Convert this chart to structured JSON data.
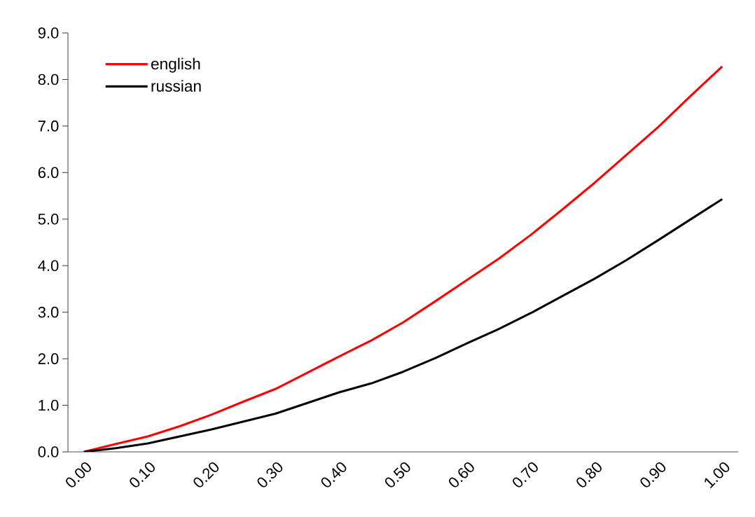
{
  "chart_data": {
    "type": "line",
    "categories": [
      "0.00",
      null,
      "0.10",
      null,
      "0.20",
      null,
      "0.30",
      null,
      "0.40",
      null,
      "0.50",
      null,
      "0.60",
      null,
      "0.70",
      null,
      "0.80",
      null,
      "0.90",
      null,
      "1.00"
    ],
    "series": [
      {
        "name": "english",
        "color": "#ff0000",
        "values": [
          0.0,
          0.17,
          0.33,
          0.55,
          0.8,
          1.08,
          1.35,
          1.7,
          2.05,
          2.39,
          2.78,
          3.23,
          3.69,
          4.15,
          4.66,
          5.21,
          5.78,
          6.38,
          6.98,
          7.64,
          8.28
        ]
      },
      {
        "name": "russian",
        "color": "#000000",
        "values": [
          0.0,
          0.08,
          0.18,
          0.33,
          0.48,
          0.65,
          0.82,
          1.05,
          1.28,
          1.47,
          1.72,
          2.01,
          2.33,
          2.64,
          2.98,
          3.35,
          3.72,
          4.12,
          4.55,
          4.99,
          5.43
        ]
      }
    ],
    "ylim": [
      0,
      9
    ],
    "yticks": [
      {
        "value": 0,
        "label": "0.0"
      },
      {
        "value": 1,
        "label": "1.0"
      },
      {
        "value": 2,
        "label": "2.0"
      },
      {
        "value": 3,
        "label": "3.0"
      },
      {
        "value": 4,
        "label": "4.0"
      },
      {
        "value": 5,
        "label": "5.0"
      },
      {
        "value": 6,
        "label": "6.0"
      },
      {
        "value": 7,
        "label": "7.0"
      },
      {
        "value": 8,
        "label": "8.0"
      },
      {
        "value": 9,
        "label": "9.0"
      }
    ],
    "legend": "top left",
    "grid": false,
    "marker": "none"
  }
}
